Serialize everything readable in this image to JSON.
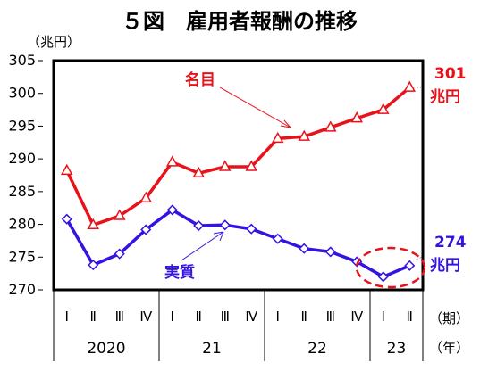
{
  "title": "５図　雇用者報酬の推移",
  "y_unit": "（兆円）",
  "axis_suffix_quarter": "（期）",
  "axis_suffix_year": "（年）",
  "colors": {
    "nominal": "#e8121b",
    "real": "#3314e0",
    "frame": "#000000"
  },
  "chart_data": {
    "type": "line",
    "title": "５図　雇用者報酬の推移",
    "ylabel": "（兆円）",
    "ylim": [
      270,
      305
    ],
    "yticks": [
      270,
      275,
      280,
      285,
      290,
      295,
      300,
      305
    ],
    "grid": false,
    "categories": [
      "Ⅰ",
      "Ⅱ",
      "Ⅲ",
      "Ⅳ",
      "Ⅰ",
      "Ⅱ",
      "Ⅲ",
      "Ⅳ",
      "Ⅰ",
      "Ⅱ",
      "Ⅲ",
      "Ⅳ",
      "Ⅰ",
      "Ⅱ"
    ],
    "year_groups": [
      {
        "label": "2020",
        "count": 4
      },
      {
        "label": "21",
        "count": 4
      },
      {
        "label": "22",
        "count": 4
      },
      {
        "label": "23",
        "count": 2
      }
    ],
    "series": [
      {
        "name": "名目",
        "marker": "triangle",
        "values": [
          288.2,
          279.9,
          281.3,
          284.0,
          289.5,
          287.8,
          288.8,
          288.8,
          293.1,
          293.4,
          294.8,
          296.2,
          297.5,
          300.9
        ],
        "end_label": [
          "301",
          "兆円"
        ]
      },
      {
        "name": "実質",
        "marker": "diamond",
        "values": [
          280.8,
          273.8,
          275.5,
          279.2,
          282.2,
          279.8,
          279.9,
          279.3,
          277.8,
          276.3,
          275.8,
          274.3,
          272.0,
          273.7
        ],
        "end_label": [
          "274",
          "兆円"
        ]
      }
    ]
  }
}
